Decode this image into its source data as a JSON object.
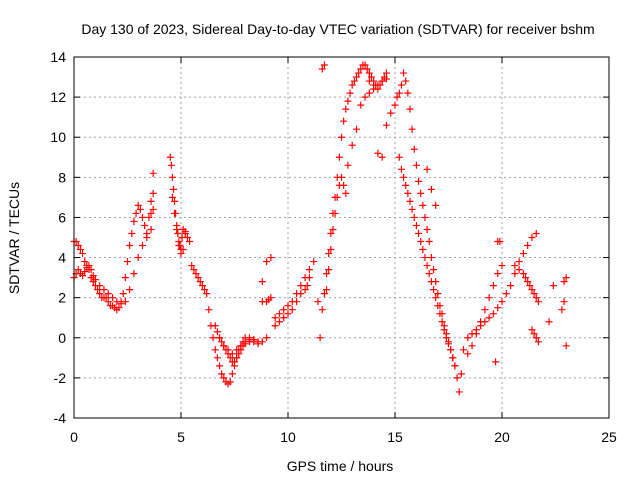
{
  "chart_data": {
    "type": "scatter",
    "title": "Day 130 of 2023, Sidereal Day-to-day VTEC variation (SDTVAR) for receiver bshm",
    "xlabel": "GPS time / hours",
    "ylabel": "SDTVAR / TECUs",
    "xlim": [
      0,
      25
    ],
    "ylim": [
      -4,
      14
    ],
    "xticks": [
      0,
      5,
      10,
      15,
      20,
      25
    ],
    "yticks": [
      -4,
      -2,
      0,
      2,
      4,
      6,
      8,
      10,
      12,
      14
    ],
    "xtick_labels": [
      "0",
      "5",
      "10",
      "15",
      "20",
      "25"
    ],
    "ytick_labels": [
      "-4",
      "-2",
      "0",
      "2",
      "4",
      "6",
      "8",
      "10",
      "12",
      "14"
    ],
    "grid": true,
    "marker": "plus",
    "color": "#ff0000",
    "series": [
      {
        "name": "SDTVAR",
        "x": [
          0.0,
          0.1,
          0.2,
          0.3,
          0.4,
          0.5,
          0.6,
          0.7,
          0.8,
          0.9,
          1.0,
          1.1,
          1.2,
          1.3,
          1.4,
          1.5,
          1.6,
          1.7,
          1.8,
          1.9,
          2.0,
          2.1,
          2.2,
          2.3,
          2.4,
          2.5,
          2.6,
          2.7,
          2.8,
          2.9,
          3.0,
          3.1,
          3.2,
          3.3,
          3.4,
          3.5,
          3.6,
          3.7,
          0.0,
          0.1,
          0.2,
          0.3,
          0.4,
          0.5,
          0.6,
          0.7,
          0.8,
          0.9,
          1.0,
          1.2,
          1.4,
          1.6,
          1.8,
          2.0,
          2.2,
          2.4,
          2.6,
          2.8,
          3.0,
          3.2,
          3.4,
          3.6,
          3.6,
          3.7,
          3.7,
          4.5,
          4.55,
          4.6,
          4.65,
          4.7,
          4.75,
          4.8,
          4.85,
          4.9,
          4.95,
          5.0,
          5.05,
          5.1,
          5.2,
          5.3,
          5.4,
          4.6,
          4.7,
          4.8,
          4.9,
          5.0,
          5.1,
          5.2,
          5.5,
          5.6,
          5.7,
          5.8,
          5.9,
          6.0,
          6.1,
          6.2,
          6.3,
          6.4,
          6.5,
          6.6,
          6.7,
          6.8,
          6.9,
          7.0,
          7.1,
          7.2,
          7.3,
          7.4,
          7.5,
          7.6,
          7.7,
          7.8,
          7.9,
          8.0,
          8.2,
          8.4,
          8.6,
          8.8,
          9.0,
          6.6,
          6.7,
          6.8,
          6.9,
          7.0,
          7.1,
          7.2,
          7.3,
          7.4,
          7.5,
          7.6,
          7.7,
          7.8,
          7.9,
          8.0,
          8.2,
          8.4,
          6.8,
          7.0,
          7.2,
          7.4,
          7.6,
          7.8,
          8.0,
          8.2,
          8.4,
          8.6,
          8.8,
          9.0,
          9.1,
          9.2,
          9.4,
          9.6,
          9.8,
          10.0,
          10.2,
          10.4,
          10.6,
          10.8,
          11.0,
          11.2,
          9.0,
          9.2,
          9.4,
          9.6,
          9.8,
          10.0,
          10.2,
          10.4,
          10.6,
          10.8,
          10.9,
          8.8,
          11.0,
          11.4,
          11.5,
          11.6,
          11.7,
          11.8,
          11.9,
          12.0,
          12.1,
          12.2,
          12.3,
          12.4,
          12.5,
          12.6,
          12.7,
          12.8,
          12.9,
          13.0,
          13.1,
          13.2,
          13.3,
          13.4,
          13.5,
          13.6,
          13.7,
          13.8,
          13.9,
          14.0,
          14.1,
          14.2,
          14.3,
          14.4,
          14.5,
          14.6,
          11.6,
          11.7,
          11.8,
          11.9,
          12.0,
          12.1,
          12.2,
          12.3,
          12.4,
          12.5,
          12.6,
          12.7,
          12.8,
          13.0,
          13.2,
          13.4,
          13.6,
          13.8,
          14.0,
          14.2,
          14.4,
          14.6,
          13.8,
          14.0,
          14.2,
          14.4,
          14.6,
          14.8,
          15.0,
          15.1,
          15.2,
          15.3,
          15.4,
          15.5,
          15.6,
          15.7,
          15.8,
          15.9,
          16.0,
          16.1,
          16.2,
          16.3,
          16.4,
          16.5,
          16.6,
          16.7,
          16.8,
          16.9,
          17.0,
          17.1,
          17.2,
          17.3,
          17.4,
          17.5,
          17.6,
          17.7,
          17.8,
          17.9,
          18.0,
          15.2,
          15.3,
          15.4,
          15.5,
          15.6,
          15.7,
          15.8,
          15.9,
          16.0,
          16.1,
          16.2,
          16.3,
          16.4,
          16.5,
          16.6,
          16.7,
          16.8,
          16.9,
          17.0,
          17.1,
          17.2,
          17.3,
          17.4,
          17.5,
          17.6,
          17.7,
          17.8,
          18.1,
          16.5,
          16.7,
          16.9,
          18.2,
          18.4,
          18.6,
          18.8,
          19.0,
          19.2,
          19.4,
          19.6,
          19.8,
          20.0,
          18.4,
          18.6,
          18.8,
          19.0,
          19.2,
          19.4,
          19.6,
          19.8,
          20.0,
          20.2,
          20.4,
          20.6,
          20.8,
          21.0,
          21.2,
          21.4,
          21.6,
          20.6,
          20.8,
          21.0,
          21.1,
          21.2,
          21.3,
          21.4,
          21.5,
          21.6,
          21.7,
          19.8,
          19.9,
          19.7,
          21.4,
          21.5,
          21.6,
          21.7,
          22.2,
          22.4,
          22.8,
          22.9,
          22.9,
          23.0,
          23.0
        ],
        "y": [
          4.8,
          4.8,
          4.6,
          4.4,
          4.2,
          3.8,
          3.6,
          3.4,
          3.0,
          2.8,
          2.6,
          2.4,
          2.2,
          2.0,
          2.0,
          2.0,
          1.8,
          1.6,
          1.6,
          1.5,
          1.4,
          1.5,
          1.8,
          2.2,
          3.0,
          3.8,
          4.6,
          5.2,
          5.8,
          6.2,
          6.6,
          6.4,
          6.0,
          5.6,
          5.2,
          6.0,
          6.8,
          7.2,
          3.0,
          3.2,
          3.4,
          3.2,
          3.1,
          3.3,
          3.5,
          3.6,
          3.4,
          3.1,
          2.9,
          2.6,
          2.4,
          2.2,
          2.0,
          1.8,
          1.7,
          1.8,
          2.4,
          3.2,
          4.0,
          4.6,
          5.0,
          5.4,
          6.2,
          6.4,
          8.2,
          9.0,
          8.6,
          8.0,
          7.4,
          6.8,
          6.2,
          5.6,
          5.2,
          4.8,
          4.6,
          4.4,
          5.0,
          5.4,
          5.3,
          5.0,
          4.8,
          7.0,
          6.2,
          5.4,
          4.6,
          4.2,
          4.4,
          5.2,
          3.6,
          3.4,
          3.2,
          3.0,
          2.8,
          2.6,
          2.4,
          2.2,
          1.4,
          0.6,
          0.0,
          -0.6,
          -1.0,
          -1.4,
          -1.8,
          -2.0,
          -2.2,
          -2.3,
          -2.2,
          -1.8,
          -1.4,
          -1.0,
          -0.6,
          -0.4,
          -0.2,
          0.0,
          -0.1,
          -0.2,
          -0.3,
          -0.2,
          0.0,
          0.6,
          0.3,
          0.0,
          -0.2,
          -0.4,
          -0.6,
          -0.8,
          -1.0,
          -1.2,
          -1.2,
          -1.0,
          -0.8,
          -0.6,
          -0.4,
          -0.3,
          -0.2,
          -0.1,
          0.0,
          -0.4,
          -0.6,
          -0.8,
          -0.6,
          -0.4,
          -0.2,
          0.0,
          -0.1,
          -0.2,
          1.8,
          1.8,
          1.9,
          2.0,
          1.0,
          1.2,
          1.4,
          1.6,
          1.8,
          2.2,
          2.6,
          3.0,
          3.4,
          3.8,
          3.8,
          4.0,
          0.6,
          0.8,
          1.0,
          1.2,
          1.4,
          1.8,
          2.2,
          2.4,
          2.6,
          2.8,
          3.0,
          1.8,
          0.0,
          1.4,
          2.2,
          3.2,
          4.2,
          5.2,
          6.2,
          7.0,
          8.0,
          9.0,
          10.0,
          10.8,
          11.4,
          11.8,
          12.2,
          12.6,
          12.8,
          13.0,
          13.2,
          13.4,
          13.6,
          13.6,
          13.4,
          13.2,
          13.0,
          12.8,
          12.6,
          12.4,
          12.6,
          12.8,
          13.0,
          13.2,
          13.4,
          13.6,
          2.4,
          3.4,
          4.4,
          5.4,
          6.2,
          7.0,
          7.6,
          8.0,
          7.6,
          7.2,
          8.6,
          9.6,
          10.4,
          11.6,
          12.0,
          12.2,
          12.4,
          12.6,
          12.8,
          12.9,
          12.8,
          12.6,
          9.2,
          9.0,
          10.6,
          11.2,
          11.6,
          12.0,
          12.2,
          12.6,
          13.2,
          12.8,
          12.2,
          11.4,
          10.4,
          9.4,
          8.6,
          7.8,
          7.2,
          6.6,
          6.0,
          5.4,
          4.8,
          4.0,
          3.4,
          2.8,
          2.2,
          1.6,
          1.2,
          0.6,
          0.2,
          -0.2,
          -0.6,
          -1.0,
          -1.4,
          -2.0,
          -2.7,
          9.0,
          8.4,
          8.0,
          7.6,
          7.2,
          6.8,
          6.4,
          6.0,
          5.6,
          5.2,
          4.8,
          4.4,
          4.0,
          3.6,
          3.2,
          2.8,
          2.4,
          2.0,
          1.6,
          1.2,
          0.8,
          0.4,
          0.0,
          -0.3,
          -0.6,
          -1.0,
          -1.4,
          -1.8,
          8.4,
          7.4,
          6.6,
          -0.6,
          -0.8,
          -0.4,
          0.2,
          0.8,
          1.4,
          2.0,
          2.6,
          3.2,
          3.6,
          0.0,
          0.2,
          0.4,
          0.6,
          0.8,
          1.0,
          1.2,
          1.5,
          1.8,
          2.2,
          2.6,
          3.2,
          3.8,
          4.2,
          4.6,
          5.0,
          5.2,
          3.6,
          3.4,
          3.2,
          3.0,
          2.8,
          2.6,
          2.4,
          2.2,
          2.0,
          1.8,
          4.8,
          4.8,
          -1.2,
          0.4,
          0.2,
          0.0,
          -0.2,
          0.8,
          2.6,
          1.4,
          1.8,
          2.8,
          3.0,
          -0.4
        ]
      }
    ]
  }
}
